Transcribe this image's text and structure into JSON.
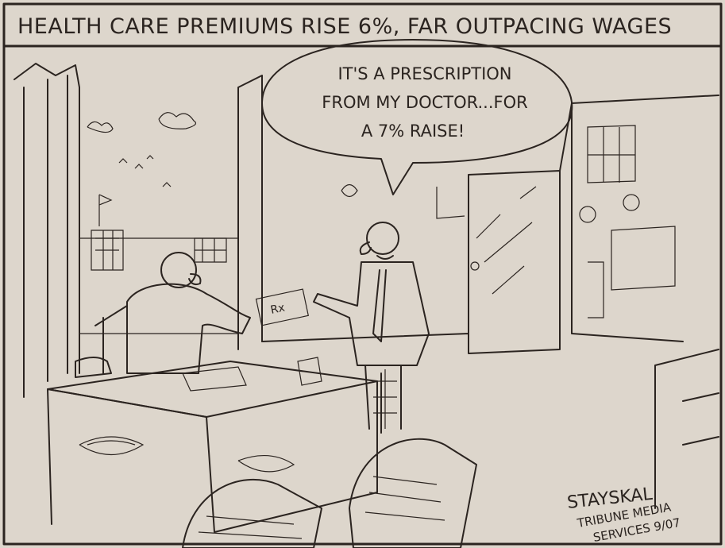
{
  "caption": "HEALTH CARE PREMIUMS RISE 6%, FAR OUTPACING WAGES",
  "speech_bubble": {
    "lines": [
      "IT'S A PRESCRIPTION",
      "FROM MY DOCTOR...FOR",
      "A 7% RAISE!"
    ]
  },
  "prescription_label": "Rx",
  "signature": {
    "artist": "STAYSKAL",
    "credit": [
      "TRIBUNE MEDIA",
      "SERVICES 9/07"
    ]
  }
}
